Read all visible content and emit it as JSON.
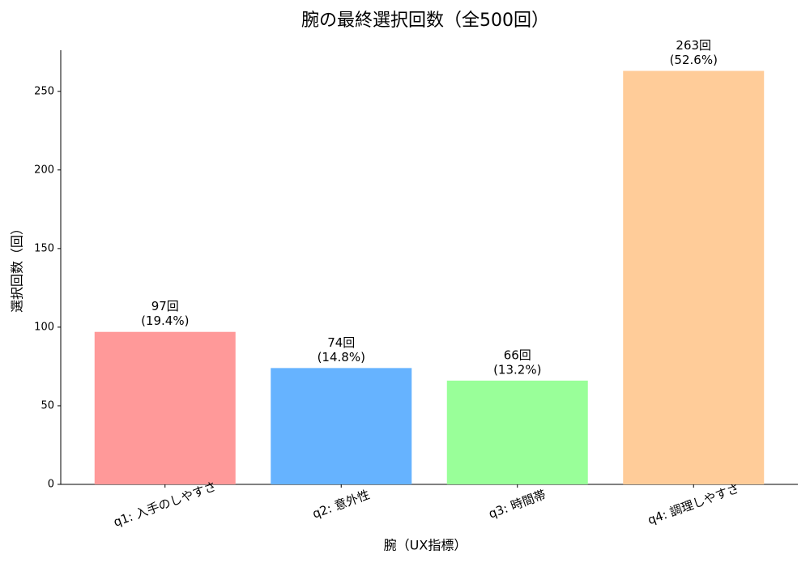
{
  "chart_data": {
    "type": "bar",
    "title": "腕の最終選択回数（全500回）",
    "x_label": "腕（UX指標）",
    "y_label": "選択回数（回）",
    "categories": [
      "q1: 入手のしやすさ",
      "q2: 意外性",
      "q3: 時間帯",
      "q4: 調理しやすさ"
    ],
    "values": [
      97,
      74,
      66,
      263
    ],
    "value_labels": [
      "97回",
      "74回",
      "66回",
      "263回"
    ],
    "percents": [
      19.4,
      14.8,
      13.2,
      52.6
    ],
    "percent_labels": [
      "(19.4%)",
      "(14.8%)",
      "(13.2%)",
      "(52.6%)"
    ],
    "colors": [
      "#ff9999",
      "#66b3ff",
      "#99ff99",
      "#ffcc99"
    ],
    "ylim": [
      0,
      276.15
    ],
    "yticks": [
      0,
      50,
      100,
      150,
      200,
      250
    ],
    "grid": false
  }
}
